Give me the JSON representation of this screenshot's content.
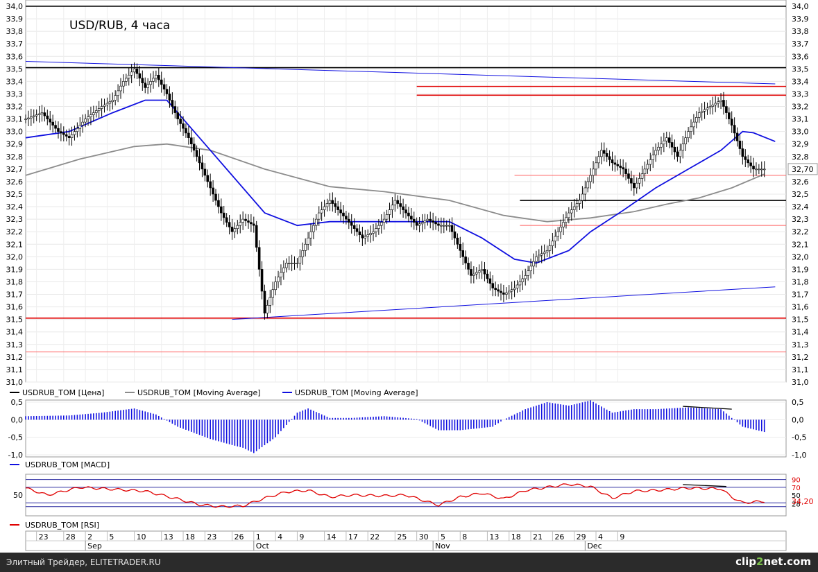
{
  "chart_data": {
    "type": "line",
    "title": "USD/RUB, 4 часа",
    "price_panel": {
      "ylim": [
        31.0,
        34.0
      ],
      "y_ticks": [
        "34,0",
        "33,9",
        "33,8",
        "33,7",
        "33,6",
        "33,5",
        "33,4",
        "33,3",
        "33,2",
        "33,1",
        "33,0",
        "32,9",
        "32,8",
        "32,7",
        "32,6",
        "32,5",
        "32,4",
        "32,3",
        "32,2",
        "32,1",
        "32,0",
        "31,9",
        "31,8",
        "31,7",
        "31,6",
        "31,5",
        "31,4",
        "31,3",
        "31,2",
        "31,1",
        "31,0"
      ],
      "last_price_label": "32,70",
      "price_series": [
        [
          0,
          33.1
        ],
        [
          3,
          33.15
        ],
        [
          6,
          33.0
        ],
        [
          8,
          32.95
        ],
        [
          11,
          33.1
        ],
        [
          14,
          33.2
        ],
        [
          16,
          33.25
        ],
        [
          18,
          33.4
        ],
        [
          20,
          33.5
        ],
        [
          22,
          33.35
        ],
        [
          24,
          33.45
        ],
        [
          26,
          33.3
        ],
        [
          28,
          33.1
        ],
        [
          30,
          32.95
        ],
        [
          32,
          32.75
        ],
        [
          34,
          32.55
        ],
        [
          36,
          32.35
        ],
        [
          38,
          32.2
        ],
        [
          40,
          32.3
        ],
        [
          42,
          32.25
        ],
        [
          44,
          31.55
        ],
        [
          46,
          31.8
        ],
        [
          48,
          31.95
        ],
        [
          50,
          31.95
        ],
        [
          52,
          32.15
        ],
        [
          54,
          32.35
        ],
        [
          56,
          32.45
        ],
        [
          58,
          32.35
        ],
        [
          60,
          32.25
        ],
        [
          62,
          32.15
        ],
        [
          64,
          32.2
        ],
        [
          66,
          32.3
        ],
        [
          68,
          32.45
        ],
        [
          70,
          32.35
        ],
        [
          72,
          32.25
        ],
        [
          74,
          32.3
        ],
        [
          76,
          32.25
        ],
        [
          78,
          32.25
        ],
        [
          80,
          32.05
        ],
        [
          82,
          31.85
        ],
        [
          84,
          31.9
        ],
        [
          86,
          31.75
        ],
        [
          88,
          31.7
        ],
        [
          90,
          31.75
        ],
        [
          92,
          31.85
        ],
        [
          94,
          32.0
        ],
        [
          96,
          32.05
        ],
        [
          98,
          32.2
        ],
        [
          100,
          32.35
        ],
        [
          102,
          32.45
        ],
        [
          104,
          32.65
        ],
        [
          106,
          32.85
        ],
        [
          108,
          32.75
        ],
        [
          110,
          32.7
        ],
        [
          112,
          32.55
        ],
        [
          114,
          32.7
        ],
        [
          116,
          32.85
        ],
        [
          118,
          32.95
        ],
        [
          120,
          32.8
        ],
        [
          122,
          33.0
        ],
        [
          124,
          33.15
        ],
        [
          126,
          33.2
        ],
        [
          128,
          33.25
        ],
        [
          130,
          33.05
        ],
        [
          132,
          32.8
        ],
        [
          134,
          32.7
        ],
        [
          136,
          32.7
        ]
      ],
      "series": [
        {
          "name": "USDRUB_TOM [Цена]",
          "color": "#000000"
        },
        {
          "name": "USDRUB_TOM [Moving Average]",
          "color": "#8c8c8c",
          "values": [
            [
              0,
              32.65
            ],
            [
              10,
              32.78
            ],
            [
              20,
              32.88
            ],
            [
              26,
              32.9
            ],
            [
              34,
              32.85
            ],
            [
              44,
              32.7
            ],
            [
              56,
              32.56
            ],
            [
              66,
              32.52
            ],
            [
              78,
              32.45
            ],
            [
              88,
              32.33
            ],
            [
              96,
              32.28
            ],
            [
              104,
              32.31
            ],
            [
              112,
              32.36
            ],
            [
              118,
              32.42
            ],
            [
              124,
              32.47
            ],
            [
              130,
              32.55
            ],
            [
              136,
              32.66
            ]
          ]
        },
        {
          "name": "USDRUB_TOM [Moving Average]",
          "color": "#1010e0",
          "values": [
            [
              0,
              32.95
            ],
            [
              8,
              33.0
            ],
            [
              16,
              33.15
            ],
            [
              22,
              33.25
            ],
            [
              26,
              33.25
            ],
            [
              32,
              32.95
            ],
            [
              38,
              32.65
            ],
            [
              44,
              32.35
            ],
            [
              50,
              32.25
            ],
            [
              56,
              32.28
            ],
            [
              64,
              32.28
            ],
            [
              72,
              32.28
            ],
            [
              78,
              32.28
            ],
            [
              84,
              32.15
            ],
            [
              90,
              31.98
            ],
            [
              94,
              31.95
            ],
            [
              100,
              32.05
            ],
            [
              104,
              32.2
            ],
            [
              110,
              32.37
            ],
            [
              116,
              32.55
            ],
            [
              122,
              32.7
            ],
            [
              128,
              32.85
            ],
            [
              132,
              33.0
            ],
            [
              134,
              32.99
            ],
            [
              138,
              32.92
            ]
          ]
        }
      ],
      "horizontal_lines": [
        {
          "value": 34.0,
          "color": "#000000"
        },
        {
          "value": 33.51,
          "color": "#000000"
        },
        {
          "value": 33.36,
          "color": "#e00000",
          "from": 72
        },
        {
          "value": 33.29,
          "color": "#e00000",
          "from": 72
        },
        {
          "value": 32.65,
          "color": "#ff6060",
          "from": 90
        },
        {
          "value": 32.45,
          "color": "#000000",
          "from": 91
        },
        {
          "value": 32.25,
          "color": "#ff6060",
          "from": 91
        },
        {
          "value": 31.51,
          "color": "#e00000"
        },
        {
          "value": 31.24,
          "color": "#ff6060"
        }
      ],
      "trend_lines": [
        {
          "from": [
            0,
            33.56
          ],
          "to": [
            138,
            33.38
          ],
          "color": "#1010e0"
        },
        {
          "from": [
            38,
            31.5
          ],
          "to": [
            138,
            31.76
          ],
          "color": "#1010e0"
        }
      ]
    },
    "macd_panel": {
      "ylim": [
        -1.0,
        0.5
      ],
      "y_ticks": [
        "0,5",
        "0,0",
        "-0,5",
        "-1,0"
      ],
      "label": "USDRUB_TOM [MACD]",
      "values": [
        [
          0,
          0.1
        ],
        [
          8,
          0.12
        ],
        [
          14,
          0.2
        ],
        [
          20,
          0.32
        ],
        [
          24,
          0.15
        ],
        [
          28,
          -0.2
        ],
        [
          34,
          -0.55
        ],
        [
          38,
          -0.72
        ],
        [
          40,
          -0.8
        ],
        [
          42,
          -0.95
        ],
        [
          46,
          -0.5
        ],
        [
          50,
          0.2
        ],
        [
          52,
          0.32
        ],
        [
          56,
          0.05
        ],
        [
          60,
          0.05
        ],
        [
          66,
          0.1
        ],
        [
          72,
          0.02
        ],
        [
          76,
          -0.3
        ],
        [
          80,
          -0.3
        ],
        [
          86,
          -0.2
        ],
        [
          88,
          0.0
        ],
        [
          92,
          0.3
        ],
        [
          96,
          0.5
        ],
        [
          100,
          0.4
        ],
        [
          104,
          0.55
        ],
        [
          108,
          0.2
        ],
        [
          112,
          0.3
        ],
        [
          116,
          0.3
        ],
        [
          122,
          0.35
        ],
        [
          128,
          0.3
        ],
        [
          132,
          -0.2
        ],
        [
          136,
          -0.35
        ]
      ],
      "divergence": {
        "from": [
          121,
          0.38
        ],
        "to": [
          130,
          0.3
        ],
        "color": "#000000"
      }
    },
    "rsi_panel": {
      "ylim": [
        0,
        100
      ],
      "y_ticks_left": [
        "50"
      ],
      "y_ticks_right": [
        "90",
        "70",
        "50",
        "28"
      ],
      "last_value_label": "34,20",
      "label": "USDRUB_TOM [RSI]",
      "values": [
        [
          0,
          68
        ],
        [
          4,
          50
        ],
        [
          10,
          70
        ],
        [
          16,
          65
        ],
        [
          22,
          60
        ],
        [
          28,
          40
        ],
        [
          32,
          25
        ],
        [
          36,
          20
        ],
        [
          40,
          22
        ],
        [
          44,
          42
        ],
        [
          48,
          58
        ],
        [
          52,
          62
        ],
        [
          56,
          45
        ],
        [
          60,
          50
        ],
        [
          66,
          48
        ],
        [
          70,
          50
        ],
        [
          76,
          24
        ],
        [
          80,
          45
        ],
        [
          84,
          55
        ],
        [
          88,
          40
        ],
        [
          92,
          62
        ],
        [
          96,
          70
        ],
        [
          100,
          78
        ],
        [
          104,
          72
        ],
        [
          108,
          42
        ],
        [
          112,
          60
        ],
        [
          116,
          62
        ],
        [
          122,
          68
        ],
        [
          128,
          66
        ],
        [
          130,
          45
        ],
        [
          132,
          30
        ],
        [
          136,
          34
        ]
      ],
      "divergence": {
        "from": [
          121,
          77
        ],
        "to": [
          129,
          72
        ],
        "color": "#000000"
      }
    },
    "x_axis": {
      "day_labels": [
        {
          "i": 2,
          "label": "23"
        },
        {
          "i": 7,
          "label": "28"
        },
        {
          "i": 11,
          "label": "2"
        },
        {
          "i": 15,
          "label": "5"
        },
        {
          "i": 20,
          "label": "10"
        },
        {
          "i": 25,
          "label": "13"
        },
        {
          "i": 29,
          "label": "18"
        },
        {
          "i": 33,
          "label": "23"
        },
        {
          "i": 38,
          "label": "26"
        },
        {
          "i": 42,
          "label": "1"
        },
        {
          "i": 46,
          "label": "4"
        },
        {
          "i": 50,
          "label": "9"
        },
        {
          "i": 55,
          "label": "14"
        },
        {
          "i": 59,
          "label": "17"
        },
        {
          "i": 63,
          "label": "22"
        },
        {
          "i": 68,
          "label": "25"
        },
        {
          "i": 72,
          "label": "30"
        },
        {
          "i": 76,
          "label": "5"
        },
        {
          "i": 80,
          "label": "8"
        },
        {
          "i": 85,
          "label": "13"
        },
        {
          "i": 89,
          "label": "18"
        },
        {
          "i": 93,
          "label": "21"
        },
        {
          "i": 97,
          "label": "26"
        },
        {
          "i": 101,
          "label": "29"
        },
        {
          "i": 105,
          "label": "4"
        },
        {
          "i": 109,
          "label": "9"
        }
      ],
      "month_labels": [
        {
          "i": 11,
          "label": "Sep"
        },
        {
          "i": 42,
          "label": "Oct"
        },
        {
          "i": 75,
          "label": "Nov"
        },
        {
          "i": 103,
          "label": "Dec"
        }
      ]
    }
  },
  "footer": {
    "credit": "Элитный Трейдер, ELITETRADER.RU",
    "brand_a": "clip",
    "brand_b": "2",
    "brand_c": "net.com"
  }
}
